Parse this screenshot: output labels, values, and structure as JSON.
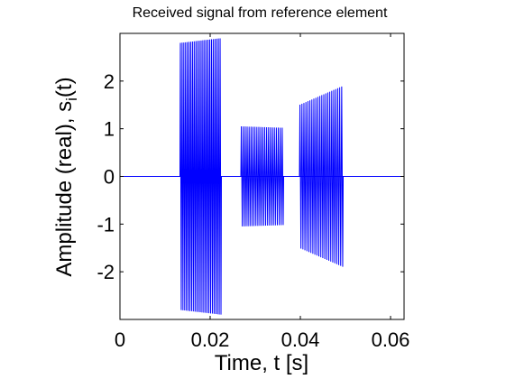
{
  "chart_data": {
    "type": "line",
    "title": "Received signal from reference element",
    "xlabel": "Time, t [s]",
    "ylabel": {
      "main": "Amplitude (real), s",
      "subscript": "i",
      "suffix": "(t)"
    },
    "xlim": [
      0,
      0.063
    ],
    "ylim": [
      -3,
      3
    ],
    "xticks": [
      {
        "value": 0,
        "label": "0"
      },
      {
        "value": 0.02,
        "label": "0.02"
      },
      {
        "value": 0.04,
        "label": "0.04"
      },
      {
        "value": 0.06,
        "label": "0.06"
      }
    ],
    "yticks": [
      {
        "value": -2,
        "label": "-2"
      },
      {
        "value": -1,
        "label": "-1"
      },
      {
        "value": 0,
        "label": "0"
      },
      {
        "value": 1,
        "label": "1"
      },
      {
        "value": 2,
        "label": "2"
      }
    ],
    "grid": false,
    "legend": "none",
    "series_color": "#0000ff",
    "baseline": 0,
    "pulses": [
      {
        "t_start": 0.0133,
        "t_end": 0.0225,
        "amp_start": 2.8,
        "amp_end": 2.9,
        "cycles": 24
      },
      {
        "t_start": 0.0268,
        "t_end": 0.0363,
        "amp_start": 1.05,
        "amp_end": 1.02,
        "cycles": 22
      },
      {
        "t_start": 0.0398,
        "t_end": 0.0495,
        "amp_start": 1.5,
        "amp_end": 1.9,
        "cycles": 22
      }
    ]
  }
}
